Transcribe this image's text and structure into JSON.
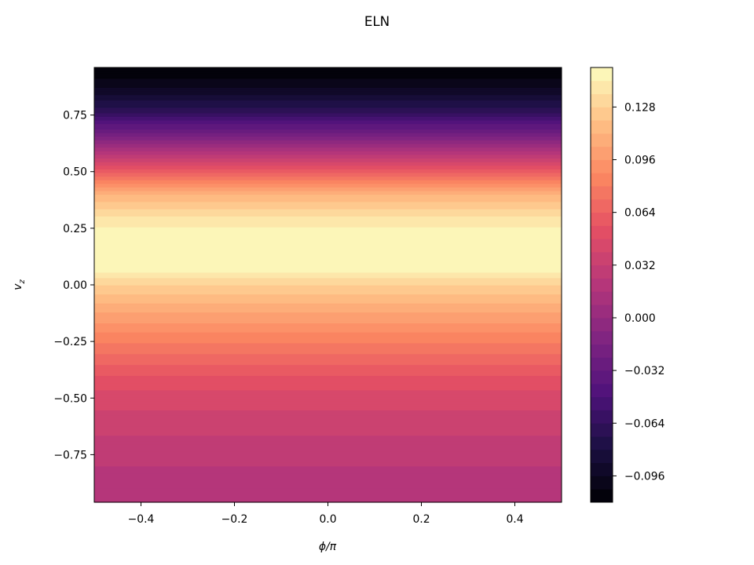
{
  "chart_data": {
    "type": "heatmap",
    "title": "ELN",
    "xlabel_base": "ϕ/π",
    "ylabel_base": "v",
    "ylabel_sub": "z",
    "xlim": [
      -0.5,
      0.5
    ],
    "ylim": [
      -0.96,
      0.96
    ],
    "grid": false,
    "colormap": "magma",
    "x_ticks": [
      {
        "value": -0.4,
        "label": "−0.4"
      },
      {
        "value": -0.2,
        "label": "−0.2"
      },
      {
        "value": 0.0,
        "label": "0.0"
      },
      {
        "value": 0.2,
        "label": "0.2"
      },
      {
        "value": 0.4,
        "label": "0.4"
      }
    ],
    "y_ticks": [
      {
        "value": 0.75,
        "label": "0.75"
      },
      {
        "value": 0.5,
        "label": "0.50"
      },
      {
        "value": 0.25,
        "label": "0.25"
      },
      {
        "value": 0.0,
        "label": "0.00"
      },
      {
        "value": -0.25,
        "label": "−0.25"
      },
      {
        "value": -0.5,
        "label": "−0.50"
      },
      {
        "value": -0.75,
        "label": "−0.75"
      }
    ],
    "colorbar": {
      "min": -0.112,
      "max": 0.152,
      "levels": 33,
      "ticks": [
        {
          "value": 0.128,
          "label": "0.128"
        },
        {
          "value": 0.096,
          "label": "0.096"
        },
        {
          "value": 0.064,
          "label": "0.064"
        },
        {
          "value": 0.032,
          "label": "0.032"
        },
        {
          "value": 0.0,
          "label": "0.000"
        },
        {
          "value": -0.032,
          "label": "−0.032"
        },
        {
          "value": -0.064,
          "label": "−0.064"
        },
        {
          "value": -0.096,
          "label": "−0.096"
        }
      ]
    },
    "profile": {
      "vz": [
        -0.96,
        -0.9,
        -0.8,
        -0.7,
        -0.6,
        -0.5,
        -0.4,
        -0.3,
        -0.2,
        -0.1,
        0.0,
        0.06,
        0.15,
        0.25,
        0.3,
        0.4,
        0.5,
        0.55,
        0.6,
        0.65,
        0.7,
        0.75,
        0.8,
        0.85,
        0.9,
        0.96
      ],
      "eln": [
        0.018,
        0.02,
        0.024,
        0.03,
        0.036,
        0.044,
        0.056,
        0.072,
        0.09,
        0.108,
        0.128,
        0.145,
        0.147,
        0.145,
        0.136,
        0.112,
        0.06,
        0.036,
        0.012,
        -0.012,
        -0.036,
        -0.06,
        -0.076,
        -0.09,
        -0.102,
        -0.112
      ]
    }
  }
}
